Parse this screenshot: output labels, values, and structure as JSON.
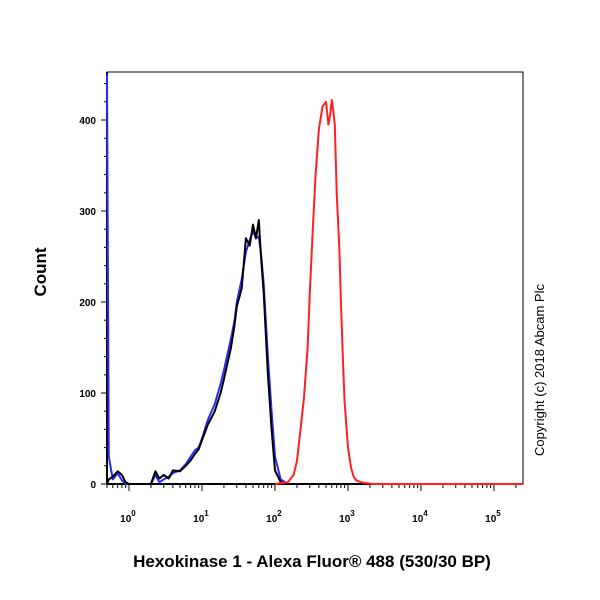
{
  "chart_data": {
    "type": "line",
    "title": "",
    "xlabel": "Hexokinase 1 - Alexa Fluor® 488 (530/30 BP)",
    "ylabel": "Count",
    "xscale": "log",
    "xlim": [
      0.5,
      250000
    ],
    "ylim": [
      0,
      450
    ],
    "x_ticks": [
      1,
      10,
      100,
      1000,
      10000,
      100000
    ],
    "x_tick_labels": [
      {
        "base": "10",
        "exp": "0"
      },
      {
        "base": "10",
        "exp": "1"
      },
      {
        "base": "10",
        "exp": "2"
      },
      {
        "base": "10",
        "exp": "3"
      },
      {
        "base": "10",
        "exp": "4"
      },
      {
        "base": "10",
        "exp": "5"
      }
    ],
    "y_ticks": [
      0,
      100,
      200,
      300,
      400
    ],
    "y_tick_labels": [
      "0",
      "100",
      "200",
      "300",
      "400"
    ],
    "grid": false,
    "legend": "none",
    "series": [
      {
        "color": "#2a2aff",
        "x": [
          0.5,
          0.53,
          0.6,
          0.7,
          0.8,
          0.9,
          1.0,
          1.2,
          1.5,
          2.0,
          2.3,
          2.6,
          3.0,
          3.5,
          4.0,
          5.0,
          6.0,
          7.0,
          8.0,
          9.0,
          10,
          12,
          15,
          18,
          20,
          25,
          28,
          30,
          35,
          40,
          45,
          50,
          55,
          60,
          65,
          70,
          75,
          80,
          90,
          100,
          120,
          150
        ],
        "y": [
          450,
          30,
          5,
          12,
          4,
          0,
          0,
          0,
          0,
          0,
          10,
          2,
          5,
          8,
          12,
          15,
          22,
          30,
          37,
          40,
          50,
          70,
          88,
          110,
          125,
          160,
          180,
          200,
          225,
          255,
          268,
          278,
          270,
          272,
          250,
          220,
          180,
          140,
          80,
          30,
          5,
          0
        ]
      },
      {
        "color": "#000000",
        "x": [
          0.5,
          0.53,
          0.6,
          0.7,
          0.8,
          0.9,
          1.0,
          1.2,
          1.5,
          2.0,
          2.3,
          2.6,
          3.0,
          3.5,
          4.0,
          5.0,
          6.0,
          7.0,
          8.0,
          9.0,
          10,
          12,
          15,
          18,
          20,
          25,
          28,
          30,
          35,
          40,
          45,
          50,
          55,
          60,
          65,
          70,
          75,
          80,
          90,
          100,
          120,
          150
        ],
        "y": [
          0,
          5,
          8,
          14,
          10,
          2,
          0,
          0,
          0,
          0,
          14,
          6,
          10,
          6,
          15,
          14,
          20,
          26,
          33,
          38,
          48,
          65,
          80,
          100,
          115,
          150,
          175,
          195,
          215,
          270,
          262,
          285,
          270,
          290,
          245,
          210,
          165,
          120,
          60,
          15,
          2,
          0
        ]
      },
      {
        "color": "#ff2020",
        "x": [
          100,
          150,
          180,
          200,
          220,
          250,
          280,
          300,
          330,
          360,
          400,
          450,
          500,
          540,
          570,
          600,
          630,
          660,
          700,
          760,
          800,
          850,
          900,
          1000,
          1100,
          1200,
          1300,
          1500,
          1800,
          2200,
          250000
        ],
        "y": [
          0,
          2,
          10,
          25,
          55,
          95,
          150,
          210,
          280,
          340,
          390,
          415,
          420,
          395,
          405,
          422,
          410,
          395,
          320,
          260,
          200,
          140,
          90,
          40,
          18,
          8,
          4,
          2,
          1,
          0,
          0
        ]
      }
    ],
    "annotations": [
      "Copyright (c) 2018 Abcam Plc"
    ]
  }
}
